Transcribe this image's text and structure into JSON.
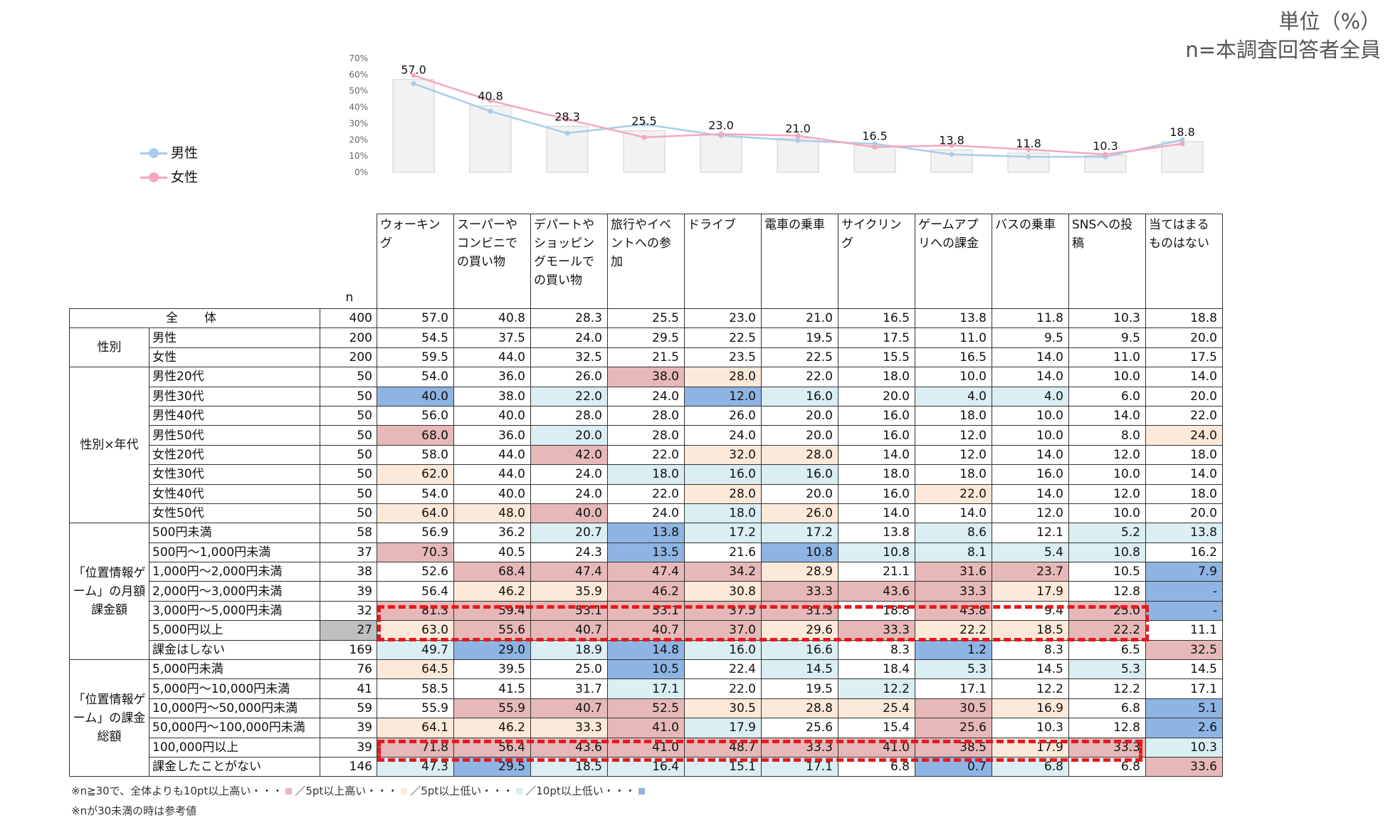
{
  "unit_lines": [
    "単位（%）",
    "n=本調査回答者全員"
  ],
  "legend": [
    {
      "label": "男性",
      "color": "#a9cde8"
    },
    {
      "label": "女性",
      "color": "#f4a7bd"
    }
  ],
  "chart_data": {
    "type": "bar",
    "title": "",
    "ylim": [
      0,
      70
    ],
    "ytick_labels": [
      "0%",
      "10%",
      "20%",
      "30%",
      "40%",
      "50%",
      "60%",
      "70%"
    ],
    "categories": [
      "ウォーキング",
      "スーパーやコンビニでの買い物",
      "デパートやショッピングモールでの買い物",
      "旅行やイベントへの参加",
      "ドライブ",
      "電車の乗車",
      "サイクリング",
      "ゲームアプリへの課金",
      "バスの乗車",
      "SNSへの投稿",
      "当てはまるものはない"
    ],
    "series": [
      {
        "name": "全体",
        "kind": "bar",
        "color": "#f2f2f2",
        "values": [
          57.0,
          40.8,
          28.3,
          25.5,
          23.0,
          21.0,
          16.5,
          13.8,
          11.8,
          10.3,
          18.8
        ]
      },
      {
        "name": "男性",
        "kind": "line",
        "color": "#a9cde8",
        "values": [
          54.5,
          37.5,
          24.0,
          29.5,
          22.5,
          19.5,
          17.5,
          11.0,
          9.5,
          9.5,
          20.0
        ]
      },
      {
        "name": "女性",
        "kind": "line",
        "color": "#f4a7bd",
        "values": [
          59.5,
          44.0,
          32.5,
          21.5,
          23.5,
          22.5,
          15.5,
          16.5,
          14.0,
          11.0,
          17.5
        ]
      }
    ],
    "data_labels": [
      "57.0",
      "40.8",
      "28.3",
      "25.5",
      "23.0",
      "21.0",
      "16.5",
      "13.8",
      "11.8",
      "10.3",
      "18.8"
    ]
  },
  "table": {
    "n_header": "n",
    "columns": [
      "ウォーキング",
      "スーパーやコンビニでの買い物",
      "デパートやショッピングモールでの買い物",
      "旅行やイベントへの参加",
      "ドライブ",
      "電車の乗車",
      "サイクリング",
      "ゲームアプリへの課金",
      "バスの乗車",
      "SNSへの投稿",
      "当てはまるものはない"
    ],
    "groups": [
      {
        "label": "全　体",
        "total": true,
        "rows": [
          {
            "label": "",
            "n": "400",
            "values": [
              "57.0",
              "40.8",
              "28.3",
              "25.5",
              "23.0",
              "21.0",
              "16.5",
              "13.8",
              "11.8",
              "10.3",
              "18.8"
            ],
            "marks": "___________"
          }
        ]
      },
      {
        "label": "性別",
        "rows": [
          {
            "label": "男性",
            "n": "200",
            "values": [
              "54.5",
              "37.5",
              "24.0",
              "29.5",
              "22.5",
              "19.5",
              "17.5",
              "11.0",
              "9.5",
              "9.5",
              "20.0"
            ],
            "marks": "___________"
          },
          {
            "label": "女性",
            "n": "200",
            "values": [
              "59.5",
              "44.0",
              "32.5",
              "21.5",
              "23.5",
              "22.5",
              "15.5",
              "16.5",
              "14.0",
              "11.0",
              "17.5"
            ],
            "marks": "___________"
          }
        ]
      },
      {
        "label": "性別×年代",
        "rows": [
          {
            "label": "男性20代",
            "n": "50",
            "values": [
              "54.0",
              "36.0",
              "26.0",
              "38.0",
              "28.0",
              "22.0",
              "18.0",
              "10.0",
              "14.0",
              "10.0",
              "14.0"
            ],
            "marks": "___Hh______"
          },
          {
            "label": "男性30代",
            "n": "50",
            "values": [
              "40.0",
              "38.0",
              "22.0",
              "24.0",
              "12.0",
              "16.0",
              "20.0",
              "4.0",
              "4.0",
              "6.0",
              "20.0"
            ],
            "marks": "L_l_Ll_ll__"
          },
          {
            "label": "男性40代",
            "n": "50",
            "values": [
              "56.0",
              "40.0",
              "28.0",
              "28.0",
              "26.0",
              "20.0",
              "16.0",
              "18.0",
              "10.0",
              "14.0",
              "22.0"
            ],
            "marks": "___________"
          },
          {
            "label": "男性50代",
            "n": "50",
            "values": [
              "68.0",
              "36.0",
              "20.0",
              "28.0",
              "24.0",
              "20.0",
              "16.0",
              "12.0",
              "10.0",
              "8.0",
              "24.0"
            ],
            "marks": "H_l_______h"
          },
          {
            "label": "女性20代",
            "n": "50",
            "values": [
              "58.0",
              "44.0",
              "42.0",
              "22.0",
              "32.0",
              "28.0",
              "14.0",
              "12.0",
              "14.0",
              "12.0",
              "18.0"
            ],
            "marks": "__H_hh_____"
          },
          {
            "label": "女性30代",
            "n": "50",
            "values": [
              "62.0",
              "44.0",
              "24.0",
              "18.0",
              "16.0",
              "16.0",
              "18.0",
              "18.0",
              "16.0",
              "10.0",
              "14.0"
            ],
            "marks": "h__lll_____"
          },
          {
            "label": "女性40代",
            "n": "50",
            "values": [
              "54.0",
              "40.0",
              "24.0",
              "22.0",
              "28.0",
              "20.0",
              "16.0",
              "22.0",
              "14.0",
              "12.0",
              "18.0"
            ],
            "marks": "____h__h___"
          },
          {
            "label": "女性50代",
            "n": "50",
            "values": [
              "64.0",
              "48.0",
              "40.0",
              "24.0",
              "18.0",
              "26.0",
              "14.0",
              "14.0",
              "12.0",
              "10.0",
              "20.0"
            ],
            "marks": "hhH_lh_____"
          }
        ]
      },
      {
        "label": "「位置情報ゲーム」の月額課金額",
        "rows": [
          {
            "label": "500円未満",
            "n": "58",
            "values": [
              "56.9",
              "36.2",
              "20.7",
              "13.8",
              "17.2",
              "17.2",
              "13.8",
              "8.6",
              "12.1",
              "5.2",
              "13.8"
            ],
            "marks": "__lLll_l_ll"
          },
          {
            "label": "500円～1,000円未満",
            "n": "37",
            "values": [
              "70.3",
              "40.5",
              "24.3",
              "13.5",
              "21.6",
              "10.8",
              "10.8",
              "8.1",
              "5.4",
              "10.8",
              "16.2"
            ],
            "marks": "H__L_Lllll_"
          },
          {
            "label": "1,000円～2,000円未満",
            "n": "38",
            "values": [
              "52.6",
              "68.4",
              "47.4",
              "47.4",
              "34.2",
              "28.9",
              "21.1",
              "31.6",
              "23.7",
              "10.5",
              "7.9"
            ],
            "marks": "_HHHHh_HH_L"
          },
          {
            "label": "2,000円～3,000円未満",
            "n": "39",
            "values": [
              "56.4",
              "46.2",
              "35.9",
              "46.2",
              "30.8",
              "33.3",
              "43.6",
              "33.3",
              "17.9",
              "12.8",
              "-"
            ],
            "marks": "_hhHhHHHh_L"
          },
          {
            "label": "3,000円～5,000円未満",
            "n": "32",
            "values": [
              "81.3",
              "59.4",
              "53.1",
              "53.1",
              "37.5",
              "31.3",
              "18.8",
              "43.8",
              "9.4",
              "25.0",
              "-"
            ],
            "marks": "HHHHHH_H_HL"
          },
          {
            "label": "5,000円以上",
            "n": "27",
            "ref": true,
            "values": [
              "63.0",
              "55.6",
              "40.7",
              "40.7",
              "37.0",
              "29.6",
              "33.3",
              "22.2",
              "18.5",
              "22.2",
              "11.1"
            ],
            "marks": "hHHHHhHhhH_"
          },
          {
            "label": "課金はしない",
            "n": "169",
            "values": [
              "49.7",
              "29.0",
              "18.9",
              "14.8",
              "16.0",
              "16.6",
              "8.3",
              "1.2",
              "8.3",
              "6.5",
              "32.5"
            ],
            "marks": "lLlLll_L__H"
          }
        ]
      },
      {
        "label": "「位置情報ゲーム」の課金総額",
        "rows": [
          {
            "label": "5,000円未満",
            "n": "76",
            "values": [
              "64.5",
              "39.5",
              "25.0",
              "10.5",
              "22.4",
              "14.5",
              "18.4",
              "5.3",
              "14.5",
              "5.3",
              "14.5"
            ],
            "marks": "h__L_l_l_l_"
          },
          {
            "label": "5,000円～10,000円未満",
            "n": "41",
            "values": [
              "58.5",
              "41.5",
              "31.7",
              "17.1",
              "22.0",
              "19.5",
              "12.2",
              "17.1",
              "12.2",
              "12.2",
              "17.1"
            ],
            "marks": "___l__l____"
          },
          {
            "label": "10,000円～50,000円未満",
            "n": "59",
            "values": [
              "55.9",
              "55.9",
              "40.7",
              "52.5",
              "30.5",
              "28.8",
              "25.4",
              "30.5",
              "16.9",
              "6.8",
              "5.1"
            ],
            "marks": "_HHHhhhHh_L"
          },
          {
            "label": "50,000円～100,000円未満",
            "n": "39",
            "values": [
              "64.1",
              "46.2",
              "33.3",
              "41.0",
              "17.9",
              "25.6",
              "15.4",
              "25.6",
              "10.3",
              "12.8",
              "2.6"
            ],
            "marks": "hhhHl__H__L"
          },
          {
            "label": "100,000円以上",
            "n": "39",
            "values": [
              "71.8",
              "56.4",
              "43.6",
              "41.0",
              "48.7",
              "33.3",
              "41.0",
              "38.5",
              "17.9",
              "33.3",
              "10.3"
            ],
            "marks": "HHHHHHHHhHl"
          },
          {
            "label": "課金したことがない",
            "n": "146",
            "values": [
              "47.3",
              "29.5",
              "18.5",
              "16.4",
              "15.1",
              "17.1",
              "6.8",
              "0.7",
              "6.8",
              "6.8",
              "33.6"
            ],
            "marks": "lLllll_Ll_H"
          }
        ]
      }
    ]
  },
  "notes": [
    "※n≧30で、全体よりも10pt以上高い・・・",
    "／5pt以上高い・・・",
    "／5pt以上低い・・・",
    "／10pt以上低い・・・",
    "※nが30未満の時は参考値"
  ],
  "highlight_colors": {
    "h10": "#e6b9b8",
    "h5": "#fde9d9",
    "l5": "#daeef3",
    "l10": "#8eb4e3",
    "box": "#e8181f"
  }
}
